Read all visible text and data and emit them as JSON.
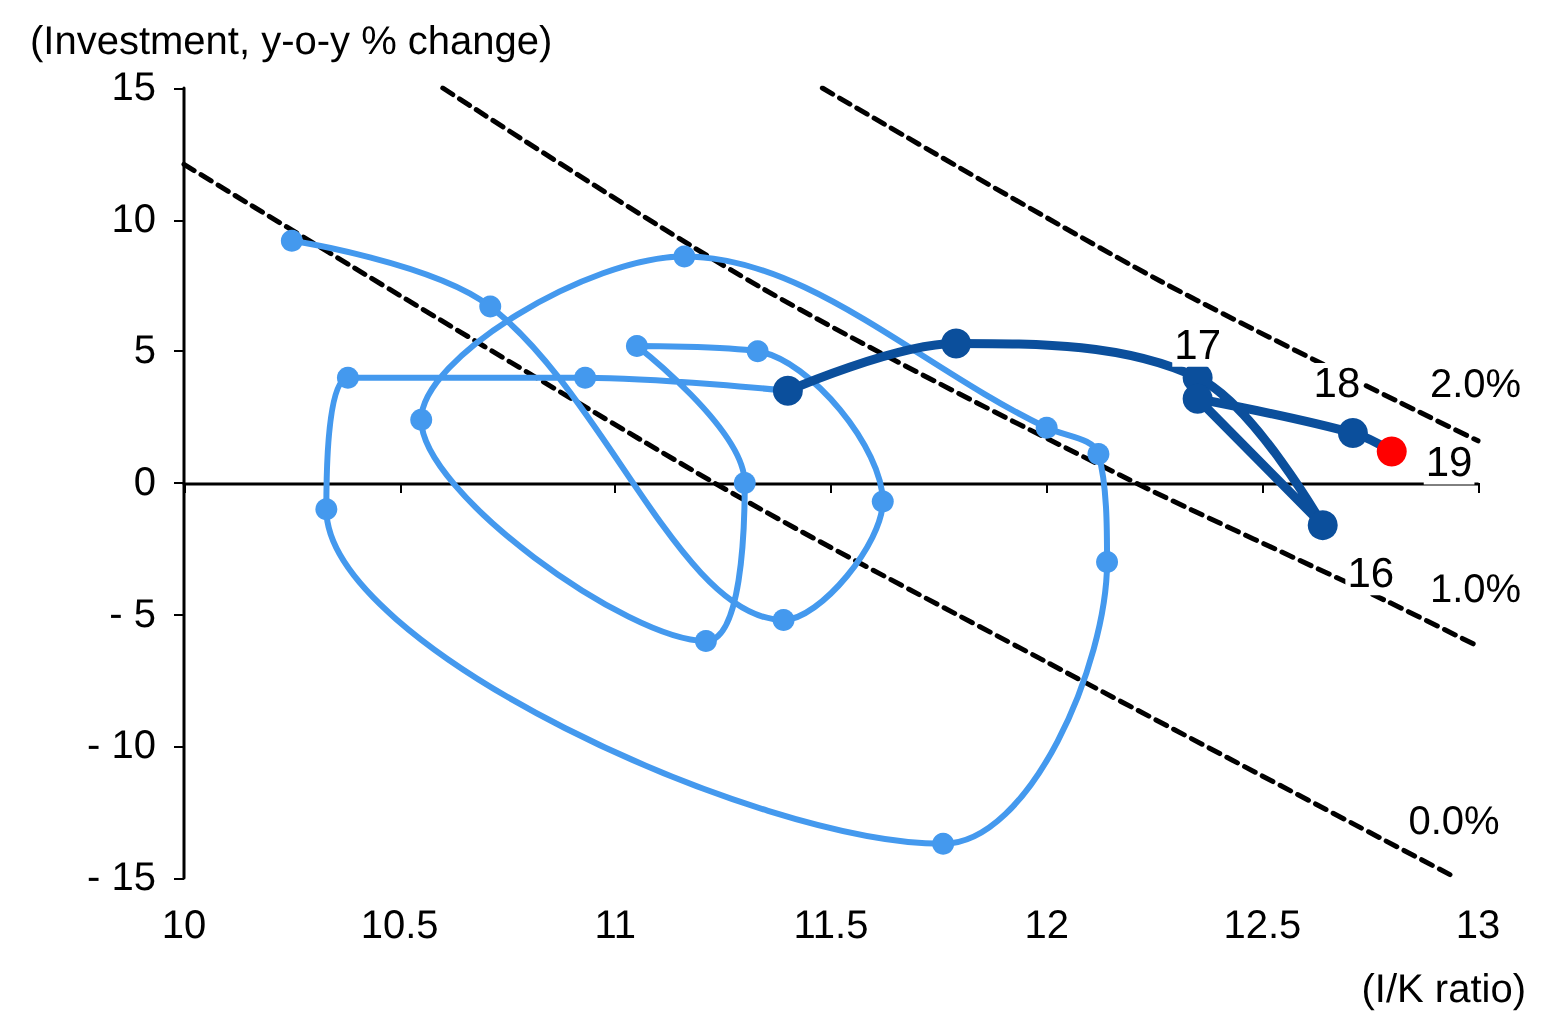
{
  "chart_data": {
    "type": "line",
    "ylabel": "(Investment, y-o-y % change)",
    "xlabel": "(I/K ratio)",
    "xlim": [
      10,
      13
    ],
    "xticks": [
      10,
      10.5,
      11,
      11.5,
      12,
      12.5,
      13
    ],
    "ylim": [
      -15,
      15
    ],
    "yticks": [
      {
        "value": -15,
        "label": "- 15"
      },
      {
        "value": -10,
        "label": "- 10"
      },
      {
        "value": -5,
        "label": "- 5"
      },
      0,
      5,
      10,
      15
    ],
    "series": [
      {
        "name": "0.0%",
        "color": "#000000",
        "line_style": "dashed",
        "marker": "none",
        "x": [
          10,
          11.23,
          12,
          12.95
        ],
        "values": [
          12.1,
          0,
          -6.8,
          -15
        ]
      },
      {
        "name": "1.0%",
        "color": "#000000",
        "line_style": "dashed",
        "marker": "none",
        "x": [
          10.6,
          11.34,
          12.17,
          12.79,
          13
        ],
        "values": [
          15,
          7.4,
          0.3,
          -4.5,
          -6.2
        ]
      },
      {
        "name": "2.0%",
        "color": "#000000",
        "line_style": "dashed",
        "marker": "none",
        "x": [
          11.48,
          12.26,
          13
        ],
        "values": [
          15,
          7.7,
          1.6
        ]
      },
      {
        "color": "#4499ee",
        "line_style": "solid",
        "marker": "circle",
        "x": [
          10.25,
          10.71,
          11.39,
          11.62,
          11.33,
          11.05,
          11.3,
          11.21,
          10.55,
          11.16,
          12.0,
          12.12,
          12.14,
          11.76,
          10.33,
          10.38,
          10.93,
          11.4
        ],
        "values": [
          9.2,
          6.7,
          -5.2,
          -0.7,
          5.0,
          5.2,
          0.0,
          -6.0,
          2.4,
          8.6,
          2.1,
          1.1,
          -3.0,
          -13.7,
          -1.0,
          4.0,
          4.0,
          3.5
        ]
      },
      {
        "color": "#0b4f9c",
        "line_style": "solid",
        "marker": "circle",
        "x": [
          11.4,
          11.79,
          12.35,
          12.64,
          12.35,
          12.71,
          12.8
        ],
        "values": [
          3.5,
          5.3,
          4.0,
          -1.6,
          3.2,
          1.9,
          1.2
        ],
        "colors": [
          "#0b4f9c",
          "#0b4f9c",
          "#0b4f9c",
          "#0b4f9c",
          "#0b4f9c",
          "#0b4f9c",
          "#ff0000"
        ]
      }
    ],
    "annotations": [
      {
        "text": "16",
        "x": 12.64,
        "y": -1.6
      },
      {
        "text": "17",
        "x": 12.35,
        "y": 3.2
      },
      {
        "text": "18",
        "x": 12.71,
        "y": 1.9
      },
      {
        "text": "19",
        "x": 12.8,
        "y": 1.2
      }
    ]
  }
}
